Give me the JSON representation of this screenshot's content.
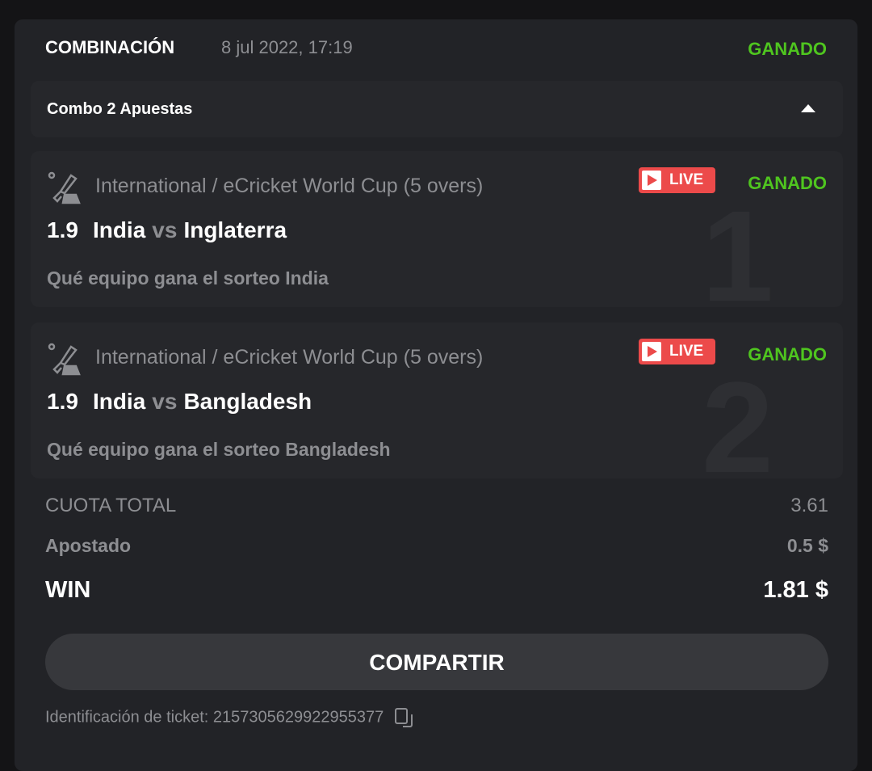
{
  "header": {
    "type": "COMBINACIÓN",
    "date": "8 jul 2022, 17:19",
    "status": "GANADO"
  },
  "combo": {
    "label": "Combo 2 Apuestas"
  },
  "bets": [
    {
      "number": "1",
      "league": "International / eCricket World Cup (5 overs)",
      "live": "LIVE",
      "status": "GANADO",
      "odd": "1.9",
      "home": "India",
      "vs": "vs",
      "away": "Inglaterra",
      "pick": "Qué equipo gana el sorteo India"
    },
    {
      "number": "2",
      "league": "International / eCricket World Cup (5 overs)",
      "live": "LIVE",
      "status": "GANADO",
      "odd": "1.9",
      "home": "India",
      "vs": "vs",
      "away": "Bangladesh",
      "pick": "Qué equipo gana el sorteo Bangladesh"
    }
  ],
  "summary": {
    "total_odds_label": "CUOTA TOTAL",
    "total_odds": "3.61",
    "stake_label": "Apostado",
    "stake": "0.5 $",
    "win_label": "WIN",
    "win": "1.81 $"
  },
  "share_label": "COMPARTIR",
  "ticket": {
    "label": "Identificación de ticket: 2157305629922955377"
  },
  "colors": {
    "won": "#4fc51f",
    "live": "#ec4a4a",
    "card": "#222327"
  },
  "icons": {
    "sport": "ecricket-icon",
    "live": "play-icon",
    "copy": "copy-icon",
    "collapse": "caret-up-icon"
  }
}
